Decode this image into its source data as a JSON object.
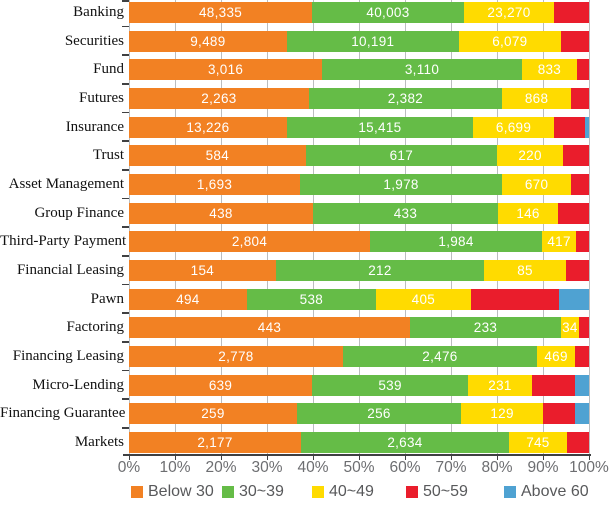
{
  "chart_data": {
    "type": "bar",
    "subtype": "horizontal-stacked-100pct",
    "title": "",
    "xlabel": "",
    "ylabel": "",
    "x_axis": {
      "min": 0,
      "max": 100,
      "tick_labels": [
        "0%",
        "10%",
        "20%",
        "30%",
        "40%",
        "50%",
        "60%",
        "70%",
        "80%",
        "90%",
        "100%"
      ],
      "grid": true
    },
    "legend_position": "bottom",
    "legend": [
      {
        "label": "Below 30",
        "color": "#F28123"
      },
      {
        "label": "30~39",
        "color": "#65BC47"
      },
      {
        "label": "40~49",
        "color": "#FFDB00"
      },
      {
        "label": "50~59",
        "color": "#EA1D2C"
      },
      {
        "label": "Above 60",
        "color": "#4FA2D2"
      }
    ],
    "rows": [
      {
        "category": "Banking",
        "values": [
          48335,
          40003,
          23270,
          null,
          null
        ],
        "value_labels": [
          "48,335",
          "40,003",
          "23,270",
          "",
          ""
        ],
        "percents": [
          39.8,
          33.0,
          19.6,
          7.6,
          0
        ]
      },
      {
        "category": "Securities",
        "values": [
          9489,
          10191,
          6079,
          null,
          null
        ],
        "value_labels": [
          "9,489",
          "10,191",
          "6,079",
          "",
          ""
        ],
        "percents": [
          34.3,
          37.4,
          22.2,
          6.1,
          0
        ]
      },
      {
        "category": "Fund",
        "values": [
          3016,
          3110,
          833,
          null,
          null
        ],
        "value_labels": [
          "3,016",
          "3,110",
          "833",
          "",
          ""
        ],
        "percents": [
          42.0,
          43.4,
          12.0,
          2.6,
          0
        ]
      },
      {
        "category": "Futures",
        "values": [
          2263,
          2382,
          868,
          null,
          null
        ],
        "value_labels": [
          "2,263",
          "2,382",
          "868",
          "",
          ""
        ],
        "percents": [
          39.1,
          42.0,
          15.0,
          3.9,
          0
        ]
      },
      {
        "category": "Insurance",
        "values": [
          13226,
          15415,
          6699,
          null,
          null
        ],
        "value_labels": [
          "13,226",
          "15,415",
          "6,699",
          "",
          ""
        ],
        "percents": [
          34.3,
          40.5,
          17.6,
          6.7,
          0.9
        ]
      },
      {
        "category": "Trust",
        "values": [
          584,
          617,
          220,
          null,
          null
        ],
        "value_labels": [
          "584",
          "617",
          "220",
          "",
          ""
        ],
        "percents": [
          38.4,
          41.6,
          14.4,
          5.6,
          0
        ]
      },
      {
        "category": "Asset Management",
        "values": [
          1693,
          1978,
          670,
          null,
          null
        ],
        "value_labels": [
          "1,693",
          "1,978",
          "670",
          "",
          ""
        ],
        "percents": [
          37.2,
          43.9,
          15.0,
          3.9,
          0
        ]
      },
      {
        "category": "Group Finance",
        "values": [
          438,
          433,
          146,
          null,
          null
        ],
        "value_labels": [
          "438",
          "433",
          "146",
          "",
          ""
        ],
        "percents": [
          40.0,
          40.2,
          13.1,
          6.7,
          0
        ]
      },
      {
        "category": "Third-Party Payment",
        "values": [
          2804,
          1984,
          417,
          null,
          null
        ],
        "value_labels": [
          "2,804",
          "1,984",
          "417",
          "",
          ""
        ],
        "percents": [
          52.4,
          37.4,
          7.4,
          2.8,
          0
        ]
      },
      {
        "category": "Financial Leasing",
        "values": [
          154,
          212,
          85,
          null,
          null
        ],
        "value_labels": [
          "154",
          "212",
          "85",
          "",
          ""
        ],
        "percents": [
          31.9,
          45.3,
          17.8,
          5.0,
          0
        ]
      },
      {
        "category": "Pawn",
        "values": [
          494,
          538,
          405,
          null,
          null
        ],
        "value_labels": [
          "494",
          "538",
          "405",
          "",
          ""
        ],
        "percents": [
          25.6,
          28.1,
          20.6,
          19.2,
          6.5
        ]
      },
      {
        "category": "Factoring",
        "values": [
          443,
          233,
          34,
          null,
          null
        ],
        "value_labels": [
          "443",
          "233",
          "34",
          "",
          ""
        ],
        "percents": [
          61.1,
          32.8,
          3.9,
          2.2,
          0
        ]
      },
      {
        "category": "Financing Leasing",
        "values": [
          2778,
          2476,
          469,
          null,
          null
        ],
        "value_labels": [
          "2,778",
          "2,476",
          "469",
          "",
          ""
        ],
        "percents": [
          46.5,
          42.2,
          8.3,
          3.0,
          0
        ]
      },
      {
        "category": "Micro-Lending",
        "values": [
          639,
          539,
          231,
          null,
          null
        ],
        "value_labels": [
          "639",
          "539",
          "231",
          "",
          ""
        ],
        "percents": [
          39.8,
          33.9,
          13.9,
          9.4,
          3.0
        ]
      },
      {
        "category": "Financing Guarantee",
        "values": [
          259,
          256,
          129,
          null,
          null
        ],
        "value_labels": [
          "259",
          "256",
          "129",
          "",
          ""
        ],
        "percents": [
          36.5,
          35.7,
          17.8,
          7.0,
          3.0
        ]
      },
      {
        "category": "Markets",
        "values": [
          2177,
          2634,
          745,
          null,
          null
        ],
        "value_labels": [
          "2,177",
          "2,634",
          "745",
          "",
          ""
        ],
        "percents": [
          37.4,
          45.2,
          12.6,
          4.8,
          0
        ]
      }
    ],
    "colors": {
      "grid": "#bbbdbf",
      "axis": "#3f4042",
      "tick_label": "#6d6e71",
      "legend_text": "#58595b",
      "bar_value_text": "#ffffff"
    }
  }
}
